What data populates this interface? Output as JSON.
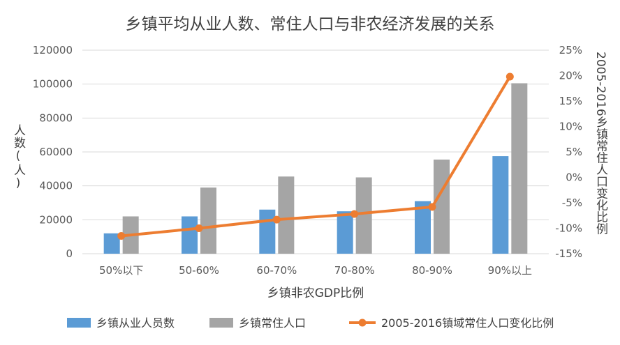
{
  "chart_data": {
    "type": "bar",
    "title": "乡镇平均从业人数、常住人口与非农经济发展的关系",
    "xlabel": "乡镇非农GDP比例",
    "ylabel": "人数(人)",
    "y2label": "2005-2016乡镇常住人口变化比例",
    "categories": [
      "50%以下",
      "50-60%",
      "60-70%",
      "70-80%",
      "80-90%",
      "90%以上"
    ],
    "ylim": [
      0,
      120000
    ],
    "yticks": [
      "0",
      "20000",
      "40000",
      "60000",
      "80000",
      "100000",
      "120000"
    ],
    "y2lim": [
      -15,
      25
    ],
    "y2ticks": [
      "-15%",
      "-10%",
      "-5%",
      "0%",
      "5%",
      "10%",
      "15%",
      "20%",
      "25%"
    ],
    "grid": true,
    "legend_position": "bottom",
    "series": [
      {
        "name": "乡镇从业人员数",
        "type": "bar",
        "axis": "left",
        "color": "#5b9bd5",
        "values": [
          12000,
          22000,
          26000,
          25000,
          31000,
          57500
        ]
      },
      {
        "name": "乡镇常住人口",
        "type": "bar",
        "axis": "left",
        "color": "#a5a5a5",
        "values": [
          22000,
          39000,
          45500,
          45000,
          55500,
          100500
        ]
      },
      {
        "name": "2005-2016镇域常住人口变化比例",
        "type": "line",
        "axis": "right",
        "color": "#ed7d31",
        "values": [
          -11.5,
          -10.0,
          -8.3,
          -7.2,
          -5.8,
          19.8
        ]
      }
    ]
  }
}
